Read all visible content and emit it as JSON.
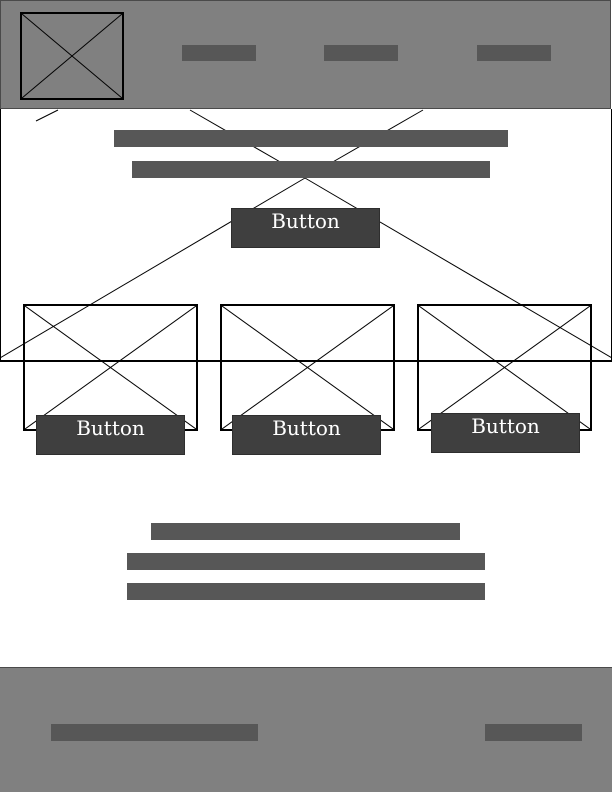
{
  "header": {
    "logo_icon": "image-placeholder-icon",
    "nav_items": [
      "",
      "",
      ""
    ]
  },
  "hero": {
    "button_label": "Button"
  },
  "cards": [
    {
      "image_icon": "image-placeholder-icon",
      "button_label": "Button"
    },
    {
      "image_icon": "image-placeholder-icon",
      "button_label": "Button"
    },
    {
      "image_icon": "image-placeholder-icon",
      "button_label": "Button"
    }
  ],
  "colors": {
    "header_bg": "#808080",
    "placeholder_bar": "#575757",
    "button_bg": "#3f3f3f",
    "button_text": "#ffffff"
  }
}
